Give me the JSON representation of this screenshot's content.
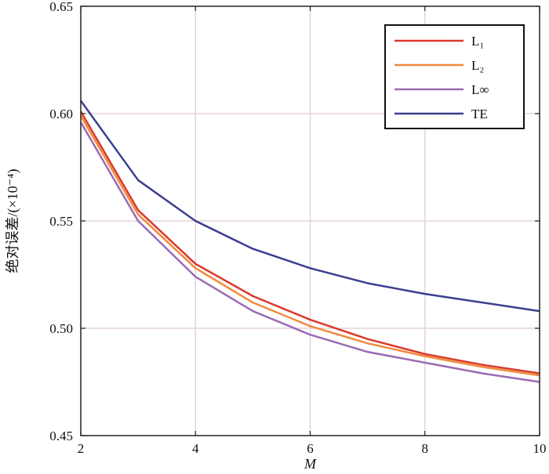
{
  "chart_data": {
    "type": "line",
    "title": "",
    "xlabel": "M",
    "ylabel": "绝对误差/(×10⁻⁴)",
    "xlim": [
      2,
      10
    ],
    "ylim": [
      0.45,
      0.65
    ],
    "xticks": [
      2,
      4,
      6,
      8,
      10
    ],
    "xtick_labels": [
      "2",
      "4",
      "6",
      "8",
      "10"
    ],
    "yticks": [
      0.45,
      0.5,
      0.55,
      0.6,
      0.65
    ],
    "ytick_labels": [
      "0.45",
      "0.50",
      "0.55",
      "0.60",
      "0.65"
    ],
    "grid": true,
    "legend_position": "top-right",
    "x": [
      2,
      3,
      4,
      5,
      6,
      7,
      8,
      9,
      10
    ],
    "series": [
      {
        "name": "L₁",
        "color": "#d93a2b",
        "values": [
          0.601,
          0.555,
          0.53,
          0.515,
          0.504,
          0.495,
          0.488,
          0.483,
          0.479
        ]
      },
      {
        "name": "L₂",
        "color": "#f08a3c",
        "values": [
          0.599,
          0.553,
          0.528,
          0.512,
          0.501,
          0.493,
          0.487,
          0.482,
          0.478
        ]
      },
      {
        "name": "L∞",
        "color": "#9a6bb4",
        "values": [
          0.596,
          0.55,
          0.524,
          0.508,
          0.497,
          0.489,
          0.484,
          0.479,
          0.475
        ]
      },
      {
        "name": "TE",
        "color": "#3b3f8f",
        "values": [
          0.606,
          0.569,
          0.55,
          0.537,
          0.528,
          0.521,
          0.516,
          0.512,
          0.508
        ]
      }
    ]
  }
}
